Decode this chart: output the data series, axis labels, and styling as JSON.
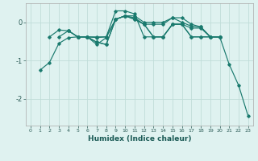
{
  "title": "",
  "xlabel": "Humidex (Indice chaleur)",
  "bg_color": "#dff2f0",
  "grid_color": "#c0ddd9",
  "line_color": "#1a7a6e",
  "xlim": [
    -0.5,
    23.5
  ],
  "ylim": [
    -2.7,
    0.5
  ],
  "yticks": [
    -2,
    -1,
    0
  ],
  "xticks": [
    0,
    1,
    2,
    3,
    4,
    5,
    6,
    7,
    8,
    9,
    10,
    11,
    12,
    13,
    14,
    15,
    16,
    17,
    18,
    19,
    20,
    21,
    22,
    23
  ],
  "series": [
    {
      "x": [
        1,
        2,
        3,
        4,
        5,
        6,
        7,
        8,
        9,
        10,
        11,
        12,
        13,
        14,
        15,
        16,
        17,
        18,
        19,
        20,
        21,
        22,
        23
      ],
      "y": [
        -1.25,
        -1.05,
        -0.55,
        -0.4,
        -0.38,
        -0.38,
        -0.52,
        -0.58,
        0.08,
        0.17,
        0.17,
        0.0,
        0.0,
        0.0,
        0.12,
        0.0,
        -0.1,
        -0.12,
        -0.38,
        -0.38,
        -1.1,
        -1.65,
        -2.45
      ]
    },
    {
      "x": [
        2,
        3,
        4,
        5,
        6,
        7,
        8,
        9,
        10,
        11,
        12,
        13,
        14,
        15,
        16,
        17,
        18,
        19,
        20
      ],
      "y": [
        -0.38,
        -0.2,
        -0.22,
        -0.38,
        -0.38,
        -0.4,
        -0.38,
        0.3,
        0.3,
        0.22,
        -0.38,
        -0.38,
        -0.38,
        -0.05,
        -0.05,
        -0.15,
        -0.15,
        -0.38,
        -0.38
      ]
    },
    {
      "x": [
        3,
        4,
        5,
        6,
        7,
        8,
        9,
        10,
        11,
        12,
        13,
        14,
        15,
        16,
        17,
        18,
        19,
        20
      ],
      "y": [
        -0.38,
        -0.22,
        -0.38,
        -0.38,
        -0.52,
        -0.58,
        0.08,
        0.17,
        0.12,
        -0.05,
        -0.05,
        -0.05,
        0.12,
        0.12,
        -0.05,
        -0.12,
        -0.38,
        -0.38
      ]
    },
    {
      "x": [
        5,
        6,
        7,
        8,
        9,
        10,
        11,
        12,
        13,
        14,
        15,
        16,
        17,
        18,
        19,
        20
      ],
      "y": [
        -0.38,
        -0.38,
        -0.58,
        -0.4,
        0.08,
        0.17,
        0.08,
        -0.05,
        -0.38,
        -0.38,
        -0.05,
        -0.05,
        -0.38,
        -0.38,
        -0.38,
        -0.38
      ]
    },
    {
      "x": [
        4,
        5,
        6,
        7,
        8,
        9,
        10,
        11,
        12,
        13,
        14,
        15,
        16,
        17,
        18,
        19,
        20
      ],
      "y": [
        -0.22,
        -0.38,
        -0.38,
        -0.38,
        -0.38,
        0.08,
        0.17,
        0.08,
        -0.05,
        -0.38,
        -0.38,
        -0.05,
        -0.05,
        -0.38,
        -0.38,
        -0.38,
        -0.38
      ]
    }
  ]
}
